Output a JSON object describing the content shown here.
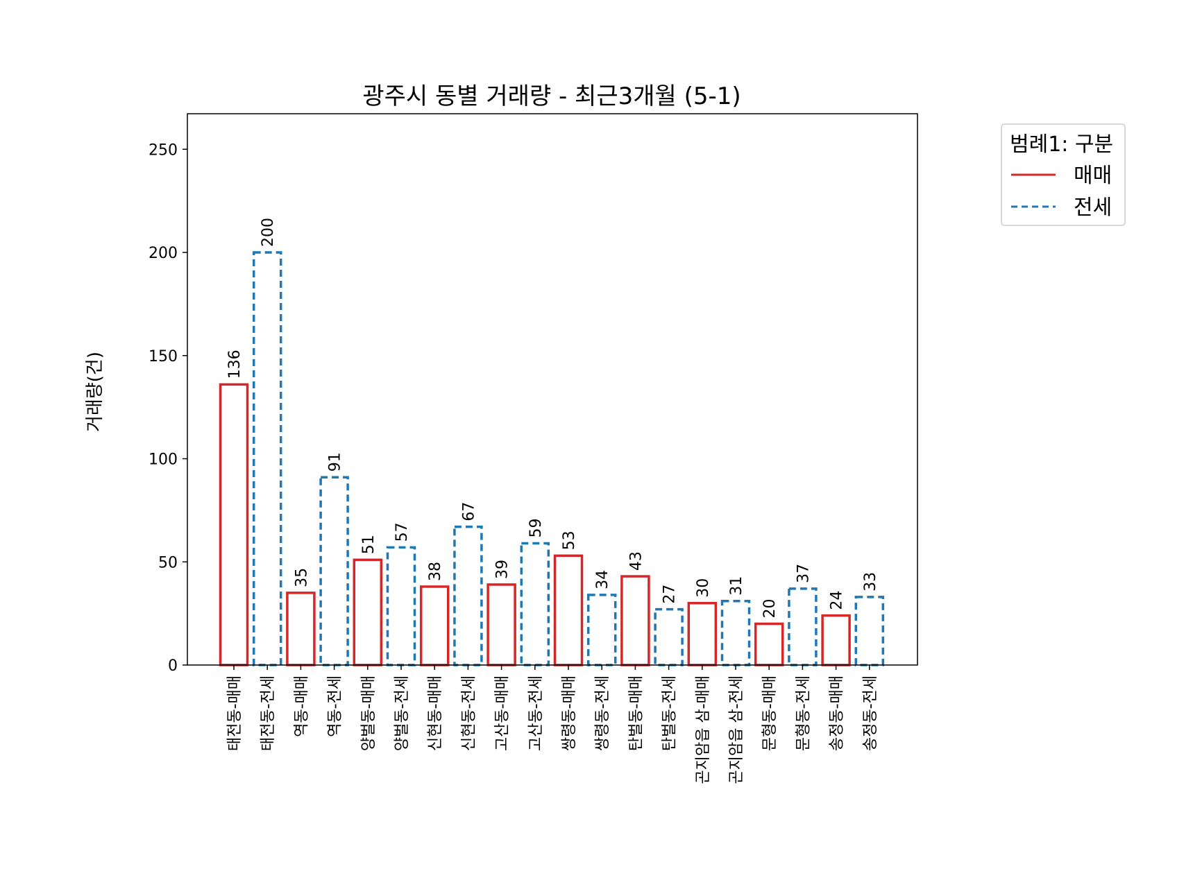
{
  "chart_data": {
    "type": "bar",
    "title": "광주시 동별 거래량 - 최근3개월 (5-1)",
    "ylabel": "거래량(건)",
    "xlabel": "",
    "ylim": [
      0,
      265
    ],
    "yticks": [
      0,
      50,
      100,
      150,
      200,
      250
    ],
    "categories": [
      "태전동-매매",
      "태전동-전세",
      "역동-매매",
      "역동-전세",
      "양벌동-매매",
      "양벌동-전세",
      "신현동-매매",
      "신현동-전세",
      "고산동-매매",
      "고산동-전세",
      "쌍령동-매매",
      "쌍령동-전세",
      "탄벌동-매매",
      "탄벌동-전세",
      "곤지암읍 삼-매매",
      "곤지암읍 삼-전세",
      "문형동-매매",
      "문형동-전세",
      "송정동-매매",
      "송정동-전세"
    ],
    "values": [
      136,
      200,
      35,
      91,
      51,
      57,
      38,
      67,
      39,
      59,
      53,
      34,
      43,
      27,
      30,
      31,
      20,
      37,
      24,
      33
    ],
    "types": [
      "매매",
      "전세",
      "매매",
      "전세",
      "매매",
      "전세",
      "매매",
      "전세",
      "매매",
      "전세",
      "매매",
      "전세",
      "매매",
      "전세",
      "매매",
      "전세",
      "매매",
      "전세",
      "매매",
      "전세"
    ],
    "legend": {
      "title": "범례1: 구분",
      "position": "outside-top-right",
      "entries": [
        {
          "label": "매매",
          "color": "#d62728",
          "style": "solid"
        },
        {
          "label": "전세",
          "color": "#1f77b4",
          "style": "dashed"
        }
      ]
    },
    "grid": false
  }
}
